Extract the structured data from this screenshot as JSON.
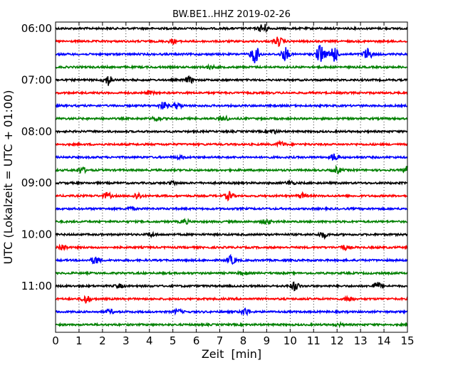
{
  "chart_data": {
    "type": "line",
    "title": "BW.BE1..HHZ 2019-02-26",
    "xlabel": "Zeit  [min]",
    "ylabel": "UTC (Lokalzeit = UTC + 01:00)",
    "xlim": [
      0,
      15
    ],
    "x_ticks": [
      0,
      1,
      2,
      3,
      4,
      5,
      6,
      7,
      8,
      9,
      10,
      11,
      12,
      13,
      14,
      15
    ],
    "x_tick_labels": [
      "0",
      "1",
      "2",
      "3",
      "4",
      "5",
      "6",
      "7",
      "8",
      "9",
      "10",
      "11",
      "12",
      "13",
      "14",
      "15"
    ],
    "y_tick_labels": [
      "06:00",
      "07:00",
      "08:00",
      "09:00",
      "10:00",
      "11:00"
    ],
    "y_tick_trace_index": [
      0,
      4,
      8,
      12,
      16,
      20
    ],
    "grid": {
      "vertical_dotted": true
    },
    "trace_interval_minutes": 15,
    "trace_colors": [
      "#000000",
      "#ff0000",
      "#0000ff",
      "#008000"
    ],
    "traces": [
      {
        "start": "06:00",
        "events": [
          [
            8.85,
            0.35
          ]
        ]
      },
      {
        "start": "06:15",
        "events": [
          [
            9.5,
            0.3
          ],
          [
            5.0,
            0.15
          ]
        ]
      },
      {
        "start": "06:30",
        "events": [
          [
            8.5,
            0.6
          ],
          [
            9.8,
            0.45
          ],
          [
            11.3,
            0.7
          ],
          [
            11.85,
            0.6
          ],
          [
            13.3,
            0.4
          ]
        ]
      },
      {
        "start": "06:45",
        "events": [
          [
            6.6,
            0.12
          ]
        ]
      },
      {
        "start": "07:00",
        "events": [
          [
            2.25,
            0.35
          ],
          [
            5.7,
            0.2
          ]
        ]
      },
      {
        "start": "07:15",
        "events": [
          [
            4.0,
            0.1
          ]
        ]
      },
      {
        "start": "07:30",
        "events": [
          [
            4.6,
            0.25
          ],
          [
            5.2,
            0.2
          ]
        ]
      },
      {
        "start": "07:45",
        "events": [
          [
            4.3,
            0.15
          ],
          [
            7.2,
            0.15
          ]
        ]
      },
      {
        "start": "08:00",
        "events": [
          [
            9.3,
            0.12
          ]
        ]
      },
      {
        "start": "08:15",
        "events": [
          [
            9.6,
            0.15
          ]
        ]
      },
      {
        "start": "08:30",
        "events": [
          [
            11.9,
            0.25
          ],
          [
            5.3,
            0.12
          ]
        ]
      },
      {
        "start": "08:45",
        "events": [
          [
            1.1,
            0.22
          ],
          [
            12.0,
            0.2
          ],
          [
            15.0,
            0.25
          ]
        ]
      },
      {
        "start": "09:00",
        "events": [
          [
            10.0,
            0.15
          ],
          [
            5.0,
            0.12
          ]
        ]
      },
      {
        "start": "09:15",
        "events": [
          [
            2.2,
            0.2
          ],
          [
            3.5,
            0.22
          ],
          [
            7.4,
            0.28
          ],
          [
            10.5,
            0.15
          ]
        ]
      },
      {
        "start": "09:30",
        "events": [
          [
            3.2,
            0.1
          ]
        ]
      },
      {
        "start": "09:45",
        "events": [
          [
            5.5,
            0.15
          ],
          [
            9.0,
            0.15
          ]
        ]
      },
      {
        "start": "10:00",
        "events": [
          [
            11.4,
            0.2
          ],
          [
            4.1,
            0.12
          ]
        ]
      },
      {
        "start": "10:15",
        "events": [
          [
            0.3,
            0.22
          ],
          [
            12.3,
            0.15
          ]
        ]
      },
      {
        "start": "10:30",
        "events": [
          [
            1.7,
            0.28
          ],
          [
            7.5,
            0.3
          ]
        ]
      },
      {
        "start": "10:45",
        "events": [
          [
            8.0,
            0.1
          ]
        ]
      },
      {
        "start": "11:00",
        "events": [
          [
            10.2,
            0.3
          ],
          [
            13.7,
            0.25
          ],
          [
            2.7,
            0.12
          ]
        ]
      },
      {
        "start": "11:15",
        "events": [
          [
            1.3,
            0.3
          ],
          [
            12.5,
            0.18
          ]
        ]
      },
      {
        "start": "11:30",
        "events": [
          [
            8.1,
            0.25
          ],
          [
            2.3,
            0.15
          ],
          [
            5.2,
            0.15
          ]
        ]
      },
      {
        "start": "11:45",
        "events": [
          [
            12.1,
            0.08
          ]
        ]
      }
    ]
  }
}
